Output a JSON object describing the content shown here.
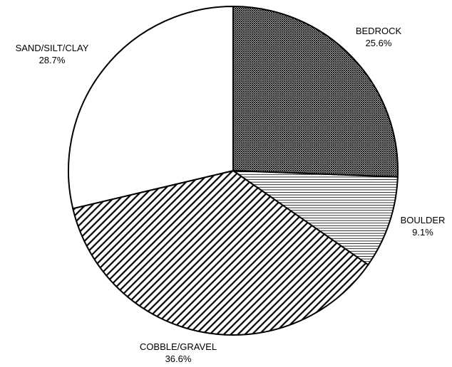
{
  "chart_data": {
    "type": "pie",
    "title": "",
    "slices": [
      {
        "label": "BEDROCK",
        "value": 25.6,
        "value_label": "25.6%",
        "pattern": "crosshatch"
      },
      {
        "label": "BOULDER",
        "value": 9.1,
        "value_label": "9.1%",
        "pattern": "horizontal-lines"
      },
      {
        "label": "COBBLE/GRAVEL",
        "value": 36.6,
        "value_label": "36.6%",
        "pattern": "diagonal-lines"
      },
      {
        "label": "SAND/SILT/CLAY",
        "value": 28.7,
        "value_label": "28.7%",
        "pattern": "solid-white"
      }
    ],
    "start_angle_deg": 0,
    "direction": "clockwise",
    "outline_color": "#000000",
    "fill_color": "#ffffff",
    "pattern_color": "#000000"
  }
}
